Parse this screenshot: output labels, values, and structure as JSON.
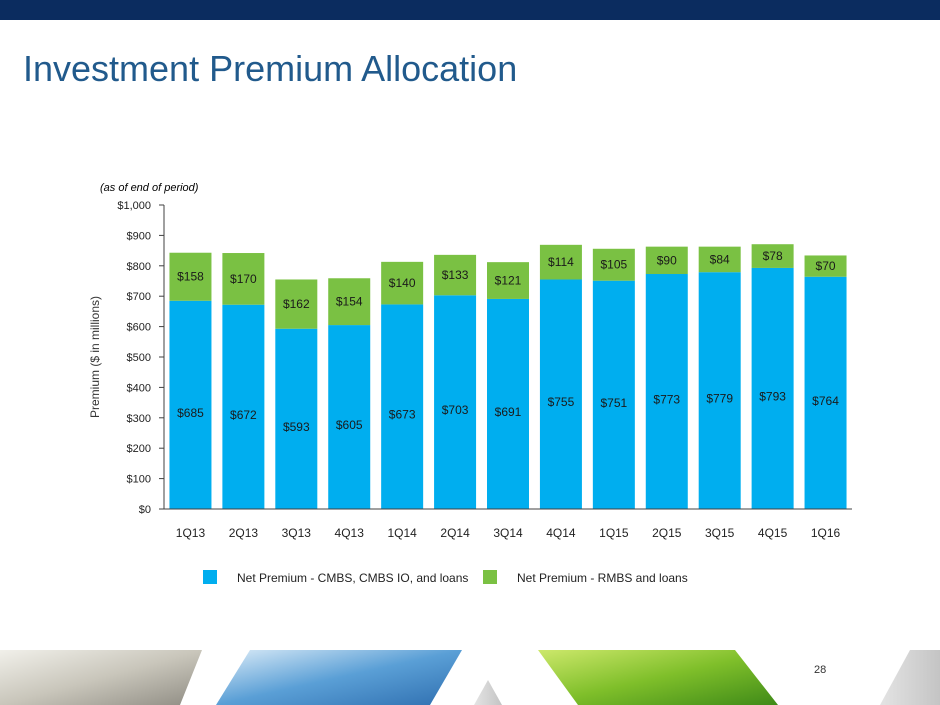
{
  "slide": {
    "title": "Investment Premium Allocation",
    "page_number": "28"
  },
  "colors": {
    "topbar": "#0b2c5f",
    "title": "#215a8c",
    "series_cmbs": "#00aeef",
    "series_rmbs": "#7ac143"
  },
  "chart_data": {
    "type": "bar",
    "stacked": true,
    "note": "(as of end of period)",
    "ylabel": "Premium ($ in millions)",
    "xlabel": "",
    "ylim": [
      0,
      1000
    ],
    "yticks": [
      0,
      100,
      200,
      300,
      400,
      500,
      600,
      700,
      800,
      900,
      1000
    ],
    "ytick_labels": [
      "$0",
      "$100",
      "$200",
      "$300",
      "$400",
      "$500",
      "$600",
      "$700",
      "$800",
      "$900",
      "$1,000"
    ],
    "categories": [
      "1Q13",
      "2Q13",
      "3Q13",
      "4Q13",
      "1Q14",
      "2Q14",
      "3Q14",
      "4Q14",
      "1Q15",
      "2Q15",
      "3Q15",
      "4Q15",
      "1Q16"
    ],
    "series": [
      {
        "name": "Net Premium - CMBS, CMBS IO, and loans",
        "color": "#00aeef",
        "values": [
          685,
          672,
          593,
          605,
          673,
          703,
          691,
          755,
          751,
          773,
          779,
          793,
          764
        ],
        "labels": [
          "$685",
          "$672",
          "$593",
          "$605",
          "$673",
          "$703",
          "$691",
          "$755",
          "$751",
          "$773",
          "$779",
          "$793",
          "$764"
        ]
      },
      {
        "name": "Net Premium - RMBS and loans",
        "color": "#7ac143",
        "values": [
          158,
          170,
          162,
          154,
          140,
          133,
          121,
          114,
          105,
          90,
          84,
          78,
          70
        ],
        "labels": [
          "$158",
          "$170",
          "$162",
          "$154",
          "$140",
          "$133",
          "$121",
          "$114",
          "$105",
          "$90",
          "$84",
          "$78",
          "$70"
        ]
      }
    ],
    "legend": "bottom-center"
  }
}
